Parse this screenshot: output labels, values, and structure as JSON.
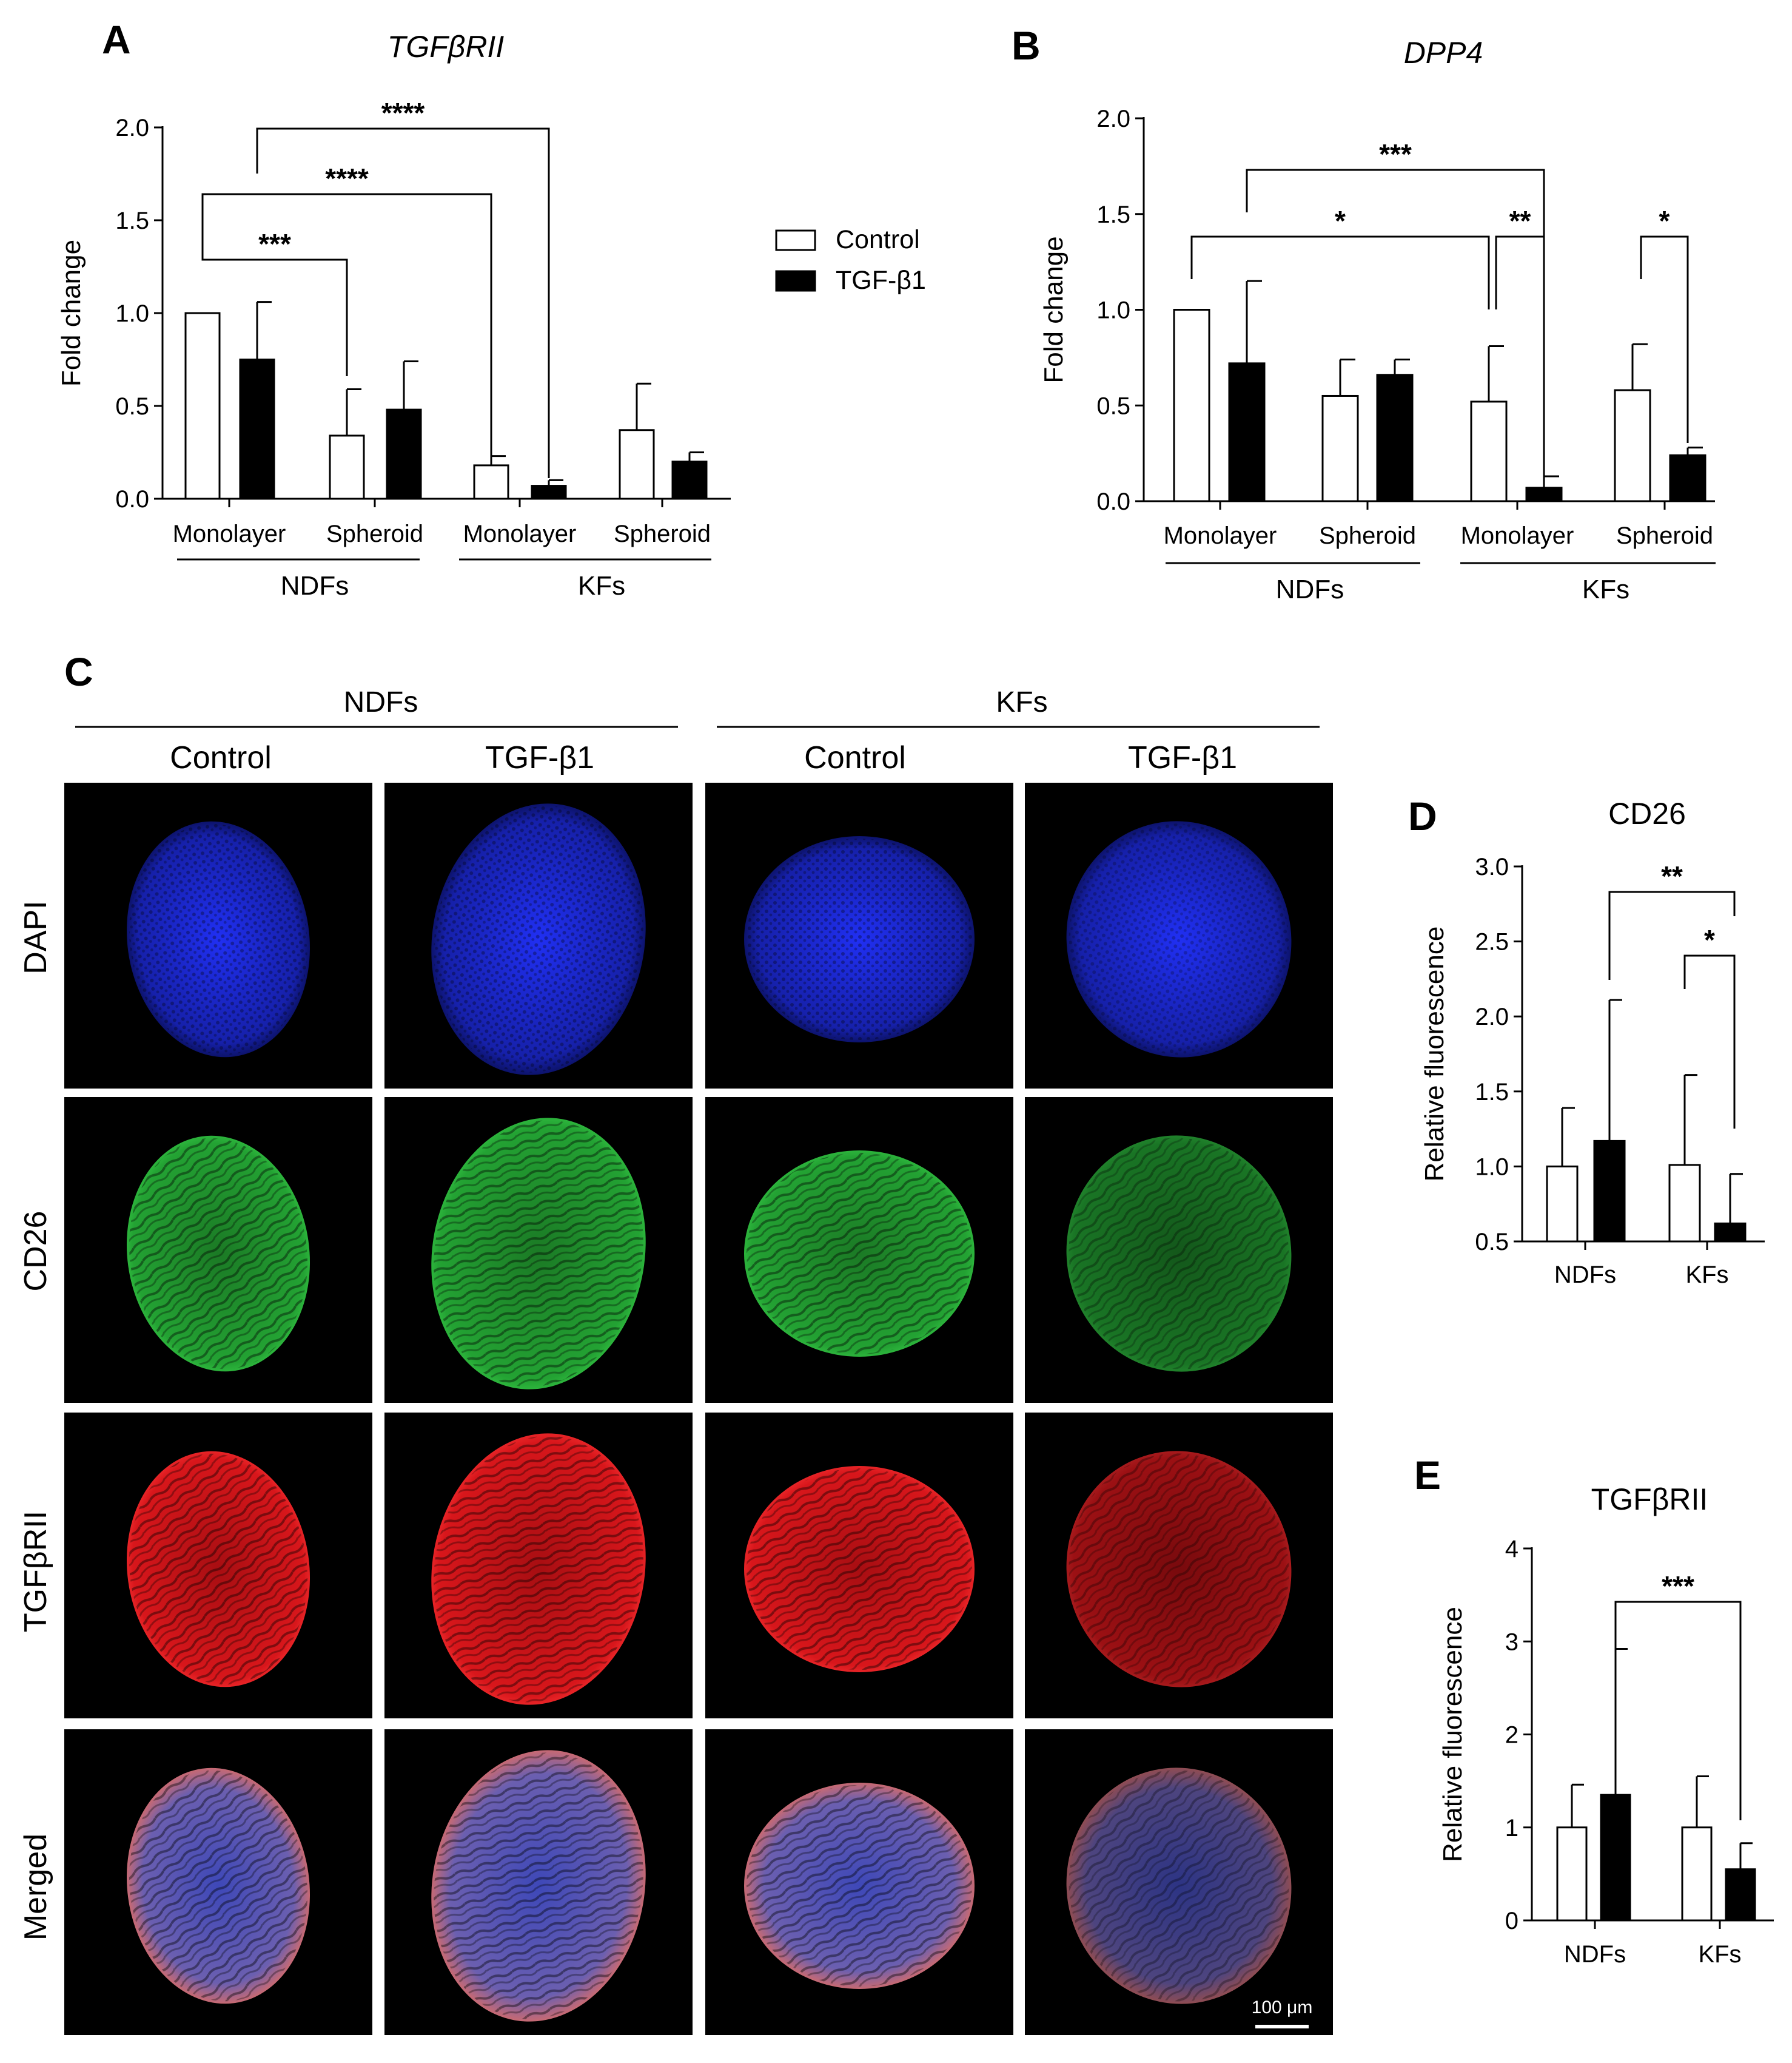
{
  "chart_data": [
    {
      "panel": "A",
      "type": "bar",
      "title": "TGFβRII",
      "ylabel": "Fold change",
      "ylim": [
        0,
        2.0
      ],
      "yticks": [
        "0.0",
        "0.5",
        "1.0",
        "1.5",
        "2.0"
      ],
      "categories": [
        "Monolayer",
        "Spheroid",
        "Monolayer",
        "Spheroid"
      ],
      "groups": [
        "NDFs",
        "KFs"
      ],
      "legend": [
        "Control",
        "TGF-β1"
      ],
      "series": [
        {
          "name": "Control",
          "values": [
            1.0,
            0.34,
            0.18,
            0.37
          ],
          "errors": [
            0,
            0.25,
            0.05,
            0.25
          ]
        },
        {
          "name": "TGF-β1",
          "values": [
            0.75,
            0.48,
            0.07,
            0.2
          ],
          "errors": [
            0.31,
            0.26,
            0.03,
            0.05
          ]
        }
      ],
      "significance": [
        "***",
        "****",
        "****"
      ]
    },
    {
      "panel": "B",
      "type": "bar",
      "title": "DPP4",
      "ylabel": "Fold change",
      "ylim": [
        0,
        2.0
      ],
      "yticks": [
        "0.0",
        "0.5",
        "1.0",
        "1.5",
        "2.0"
      ],
      "categories": [
        "Monolayer",
        "Spheroid",
        "Monolayer",
        "Spheroid"
      ],
      "groups": [
        "NDFs",
        "KFs"
      ],
      "series": [
        {
          "name": "Control",
          "values": [
            1.0,
            0.55,
            0.52,
            0.58
          ],
          "errors": [
            0,
            0.19,
            0.29,
            0.24
          ]
        },
        {
          "name": "TGF-β1",
          "values": [
            0.72,
            0.66,
            0.07,
            0.24
          ],
          "errors": [
            0.43,
            0.08,
            0.06,
            0.04
          ]
        }
      ],
      "significance": [
        "***",
        "*",
        "**",
        "*"
      ]
    },
    {
      "panel": "D",
      "type": "bar",
      "title": "CD26",
      "ylabel": "Relative fluorescence",
      "ylim": [
        0.5,
        3.0
      ],
      "yticks": [
        "0.5",
        "1.0",
        "1.5",
        "2.0",
        "2.5",
        "3.0"
      ],
      "categories": [
        "NDFs",
        "KFs"
      ],
      "series": [
        {
          "name": "Control",
          "values": [
            1.0,
            1.01
          ],
          "errors": [
            0.39,
            0.6
          ]
        },
        {
          "name": "TGF-β1",
          "values": [
            1.17,
            0.62
          ],
          "errors": [
            0.94,
            0.33
          ]
        }
      ],
      "significance": [
        "**",
        "*"
      ]
    },
    {
      "panel": "E",
      "type": "bar",
      "title": "TGFβRII",
      "ylabel": "Relative fluorescence",
      "ylim": [
        0,
        4
      ],
      "yticks": [
        "0",
        "1",
        "2",
        "3",
        "4"
      ],
      "categories": [
        "NDFs",
        "KFs"
      ],
      "series": [
        {
          "name": "Control",
          "values": [
            1.0,
            1.0
          ],
          "errors": [
            0.46,
            0.55
          ]
        },
        {
          "name": "TGF-β1",
          "values": [
            1.35,
            0.55
          ],
          "errors": [
            1.57,
            0.28
          ]
        }
      ],
      "significance": [
        "***"
      ]
    }
  ],
  "panel_c": {
    "letter": "C",
    "groups": [
      "NDFs",
      "KFs"
    ],
    "columns": [
      "Control",
      "TGF-β1",
      "Control",
      "TGF-β1"
    ],
    "rows": [
      "DAPI",
      "CD26",
      "TGFβRII",
      "Merged"
    ],
    "scalebar": "100 μm",
    "colors": {
      "DAPI": "#1f2bd9",
      "CD26": "#1f9b2e",
      "TGFβRII": "#e0171c"
    }
  },
  "panel_letters": {
    "A": "A",
    "B": "B",
    "D": "D",
    "E": "E"
  }
}
